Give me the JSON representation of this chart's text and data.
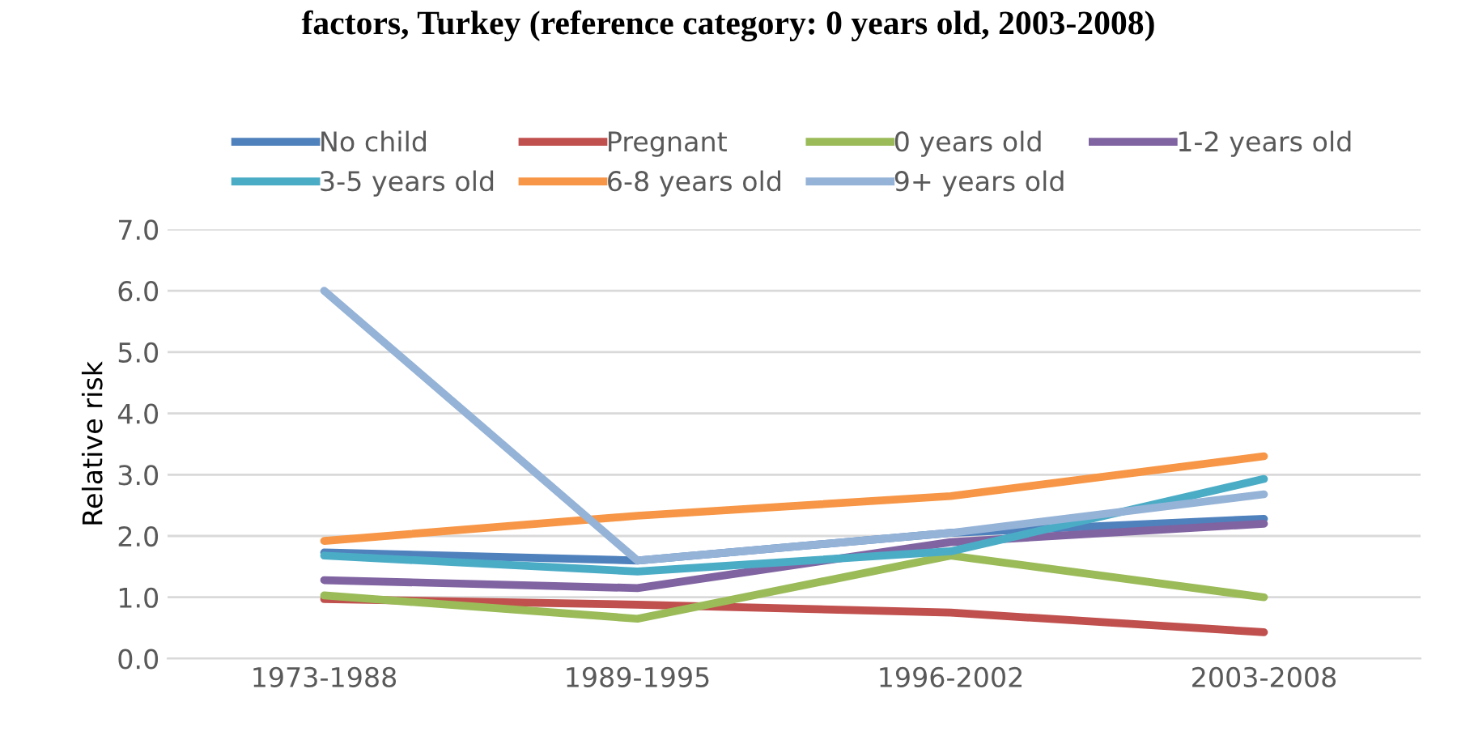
{
  "chart_data": {
    "type": "line",
    "title": "factors, Turkey (reference category: 0 years old, 2003-2008)",
    "ylabel": "Relative risk",
    "categories": [
      "1973-1988",
      "1989-1995",
      "1996-2002",
      "2003-2008"
    ],
    "series": [
      {
        "name": "No child",
        "color": "#4f81bd",
        "values": [
          1.73,
          1.6,
          2.05,
          2.28
        ]
      },
      {
        "name": "Pregnant",
        "color": "#c0504d",
        "values": [
          0.97,
          0.88,
          0.75,
          0.43
        ]
      },
      {
        "name": "0 years old",
        "color": "#9bbb59",
        "values": [
          1.03,
          0.65,
          1.68,
          1.0
        ]
      },
      {
        "name": "1-2 years old",
        "color": "#8064a2",
        "values": [
          1.28,
          1.15,
          1.9,
          2.2
        ]
      },
      {
        "name": "3-5 years old",
        "color": "#4bacc6",
        "values": [
          1.68,
          1.42,
          1.75,
          2.93
        ]
      },
      {
        "name": "6-8 years old",
        "color": "#f79646",
        "values": [
          1.92,
          2.33,
          2.65,
          3.3
        ]
      },
      {
        "name": "9+ years old",
        "color": "#95b3d7",
        "values": [
          6.0,
          1.6,
          2.05,
          2.68
        ]
      }
    ],
    "ylim": [
      0,
      7
    ],
    "yticks": [
      {
        "value": 0,
        "label": "0.0"
      },
      {
        "value": 1,
        "label": "1.0"
      },
      {
        "value": 2,
        "label": "2.0"
      },
      {
        "value": 3,
        "label": "3.0"
      },
      {
        "value": 4,
        "label": "4.0"
      },
      {
        "value": 5,
        "label": "5.0"
      },
      {
        "value": 6,
        "label": "6.0"
      },
      {
        "value": 7,
        "label": "7.0"
      }
    ],
    "grid": "y",
    "legend": "top",
    "marker": "none",
    "line_style": "solid"
  }
}
